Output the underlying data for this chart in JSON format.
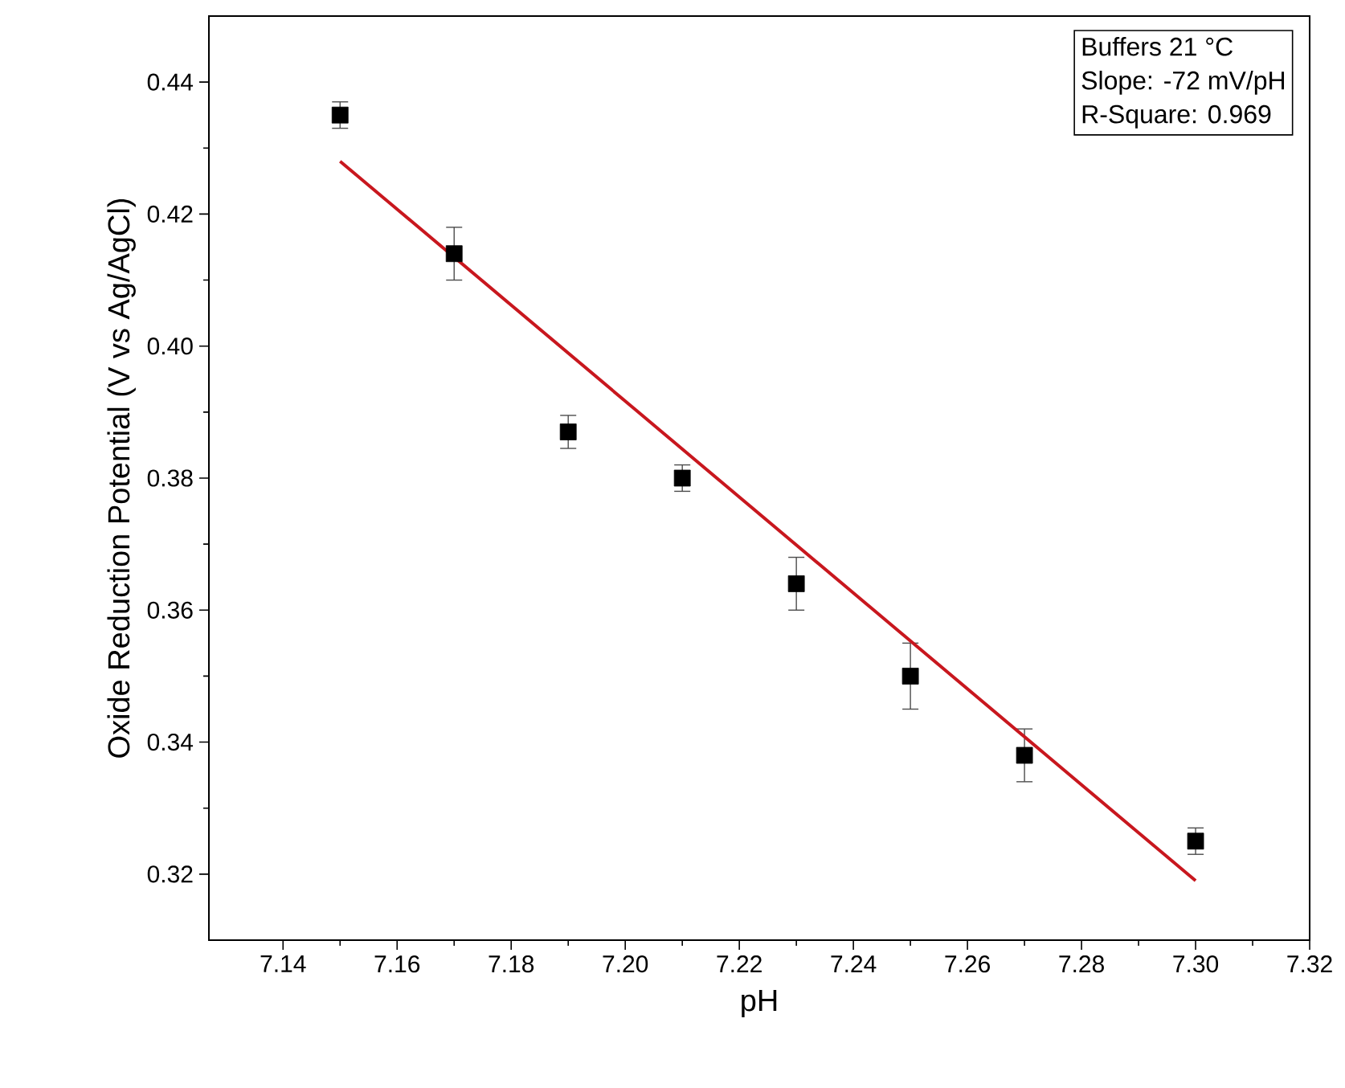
{
  "chart_data": {
    "type": "scatter",
    "xlabel": "pH",
    "ylabel": "Oxide Reduction Potential (V vs Ag/AgCl)",
    "xlim": [
      7.127,
      7.32
    ],
    "ylim": [
      0.31,
      0.45
    ],
    "xticks": [
      {
        "value": 7.14,
        "label": "7.14"
      },
      {
        "value": 7.16,
        "label": "7.16"
      },
      {
        "value": 7.18,
        "label": "7.18"
      },
      {
        "value": 7.2,
        "label": "7.20"
      },
      {
        "value": 7.22,
        "label": "7.22"
      },
      {
        "value": 7.24,
        "label": "7.24"
      },
      {
        "value": 7.26,
        "label": "7.26"
      },
      {
        "value": 7.28,
        "label": "7.28"
      },
      {
        "value": 7.3,
        "label": "7.30"
      },
      {
        "value": 7.32,
        "label": "7.32"
      }
    ],
    "yticks": [
      {
        "value": 0.32,
        "label": "0.32"
      },
      {
        "value": 0.34,
        "label": "0.34"
      },
      {
        "value": 0.36,
        "label": "0.36"
      },
      {
        "value": 0.38,
        "label": "0.38"
      },
      {
        "value": 0.4,
        "label": "0.40"
      },
      {
        "value": 0.42,
        "label": "0.42"
      },
      {
        "value": 0.44,
        "label": "0.44"
      }
    ],
    "grid": false,
    "marker": "square",
    "annotations": [
      "Buffers 21 °C",
      "Slope: -72 mV/pH",
      "R-Square: 0.969"
    ],
    "series": [
      {
        "color": "#000000",
        "x": [
          7.15,
          7.17,
          7.19,
          7.21,
          7.23,
          7.25,
          7.27,
          7.3
        ],
        "values": [
          0.435,
          0.414,
          0.387,
          0.38,
          0.364,
          0.35,
          0.338,
          0.325
        ],
        "errors": [
          0.002,
          0.004,
          0.0025,
          0.002,
          0.004,
          0.005,
          0.004,
          0.002
        ]
      },
      {
        "type": "line",
        "color": "#c8171e",
        "marker": "none",
        "line_style": "solid",
        "x": [
          7.15,
          7.3
        ],
        "values": [
          0.428,
          0.319
        ]
      }
    ]
  }
}
